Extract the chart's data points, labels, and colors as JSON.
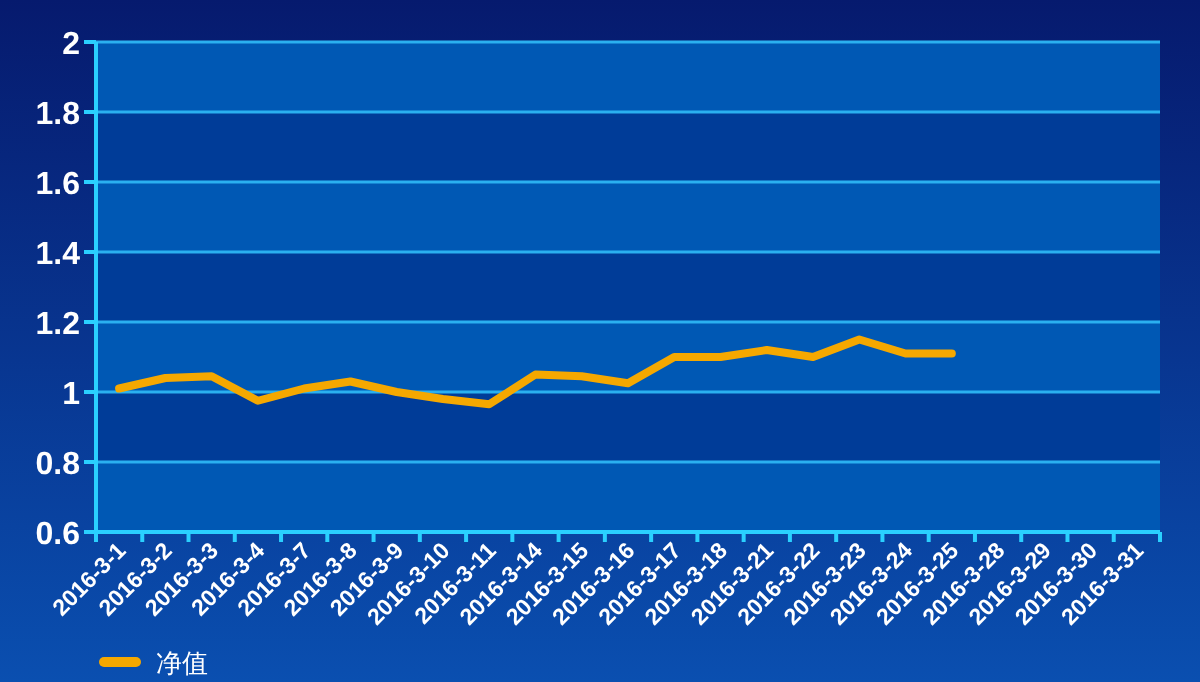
{
  "chart_data": {
    "type": "line",
    "categories": [
      "2016-3-1",
      "2016-3-2",
      "2016-3-3",
      "2016-3-4",
      "2016-3-7",
      "2016-3-8",
      "2016-3-9",
      "2016-3-10",
      "2016-3-11",
      "2016-3-14",
      "2016-3-15",
      "2016-3-16",
      "2016-3-17",
      "2016-3-18",
      "2016-3-21",
      "2016-3-22",
      "2016-3-23",
      "2016-3-24",
      "2016-3-25",
      "2016-3-28",
      "2016-3-29",
      "2016-3-30",
      "2016-3-31"
    ],
    "series": [
      {
        "name": "净值",
        "color": "#f5a800",
        "values": [
          1.01,
          1.04,
          1.045,
          0.975,
          1.01,
          1.03,
          1.0,
          0.98,
          0.965,
          1.05,
          1.045,
          1.025,
          1.1,
          1.1,
          1.12,
          1.1,
          1.15,
          1.11,
          1.11,
          null,
          null,
          null,
          null
        ]
      }
    ],
    "bands": [
      {
        "axis": "y",
        "from": 0.6,
        "to": 0.8,
        "color": "#0058b4"
      },
      {
        "axis": "y",
        "from": 0.8,
        "to": 1,
        "color": "#003c98"
      },
      {
        "axis": "y",
        "from": 1,
        "to": 1.2,
        "color": "#0058b4"
      },
      {
        "axis": "y",
        "from": 1.2,
        "to": 1.4,
        "color": "#003c98"
      },
      {
        "axis": "y",
        "from": 1.4,
        "to": 1.6,
        "color": "#0058b4"
      },
      {
        "axis": "y",
        "from": 1.6,
        "to": 1.8,
        "color": "#003c98"
      },
      {
        "axis": "y",
        "from": 1.8,
        "to": 2,
        "color": "#0058b4"
      }
    ],
    "ylim": [
      0.6,
      2
    ],
    "yticks": [
      0.6,
      0.8,
      1,
      1.2,
      1.4,
      1.6,
      1.8,
      2
    ],
    "grid": "y",
    "legend": "bottom left",
    "marker": "none",
    "line_style": "solid"
  }
}
